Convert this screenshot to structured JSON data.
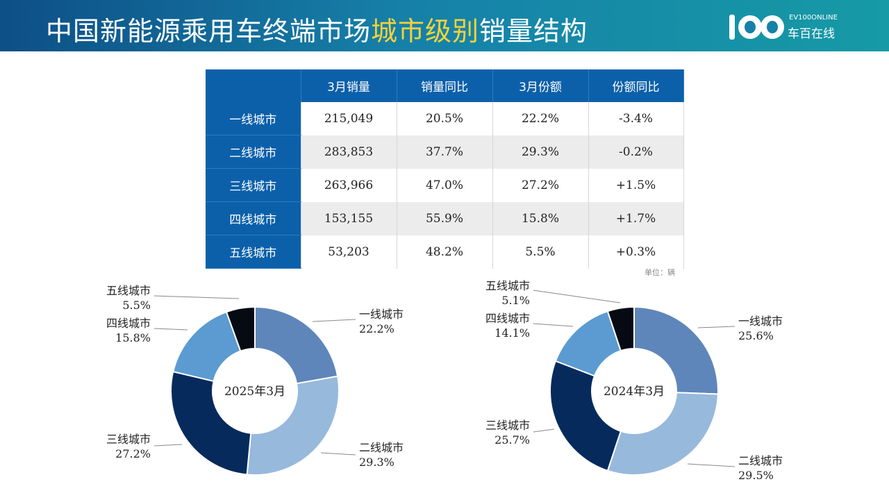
{
  "header": {
    "title_pre": "中国新能源乘用车终端市场",
    "title_highlight": "城市级别",
    "title_post": "销量结构",
    "logo_top": "EV100ONLINE",
    "logo_bottom": "车百在线"
  },
  "colors": {
    "header_start": "#0d4f86",
    "header_end": "#169aa6",
    "highlight": "#f4d23c",
    "table_header": "#0c60aa",
    "slice_1": "#5f86ba",
    "slice_2": "#97b9dc",
    "slice_3": "#062a5c",
    "slice_4": "#5b9bd1",
    "slice_5": "#060a12"
  },
  "table": {
    "headers": [
      "",
      "3月销量",
      "销量同比",
      "3月份额",
      "份额同比"
    ],
    "rows": [
      {
        "city": "一线城市",
        "sales": "215,049",
        "yoy": "20.5%",
        "share": "22.2%",
        "share_yoy": "-3.4%"
      },
      {
        "city": "二线城市",
        "sales": "283,853",
        "yoy": "37.7%",
        "share": "29.3%",
        "share_yoy": "-0.2%"
      },
      {
        "city": "三线城市",
        "sales": "263,966",
        "yoy": "47.0%",
        "share": "27.2%",
        "share_yoy": "+1.5%"
      },
      {
        "city": "四线城市",
        "sales": "153,155",
        "yoy": "55.9%",
        "share": "15.8%",
        "share_yoy": "+1.7%"
      },
      {
        "city": "五线城市",
        "sales": "53,203",
        "yoy": "48.2%",
        "share": "5.5%",
        "share_yoy": "+0.3%"
      }
    ],
    "unit_note": "单位：辆"
  },
  "chart_data": [
    {
      "type": "pie",
      "title": "2025年3月",
      "categories": [
        "一线城市",
        "二线城市",
        "三线城市",
        "四线城市",
        "五线城市"
      ],
      "values": [
        22.2,
        29.3,
        27.2,
        15.8,
        5.5
      ],
      "value_labels": [
        "22.2%",
        "29.3%",
        "27.2%",
        "15.8%",
        "5.5%"
      ]
    },
    {
      "type": "pie",
      "title": "2024年3月",
      "categories": [
        "一线城市",
        "二线城市",
        "三线城市",
        "四线城市",
        "五线城市"
      ],
      "values": [
        25.6,
        29.5,
        25.7,
        14.1,
        5.1
      ],
      "value_labels": [
        "25.6%",
        "29.5%",
        "25.7%",
        "14.1%",
        "5.1%"
      ]
    }
  ]
}
